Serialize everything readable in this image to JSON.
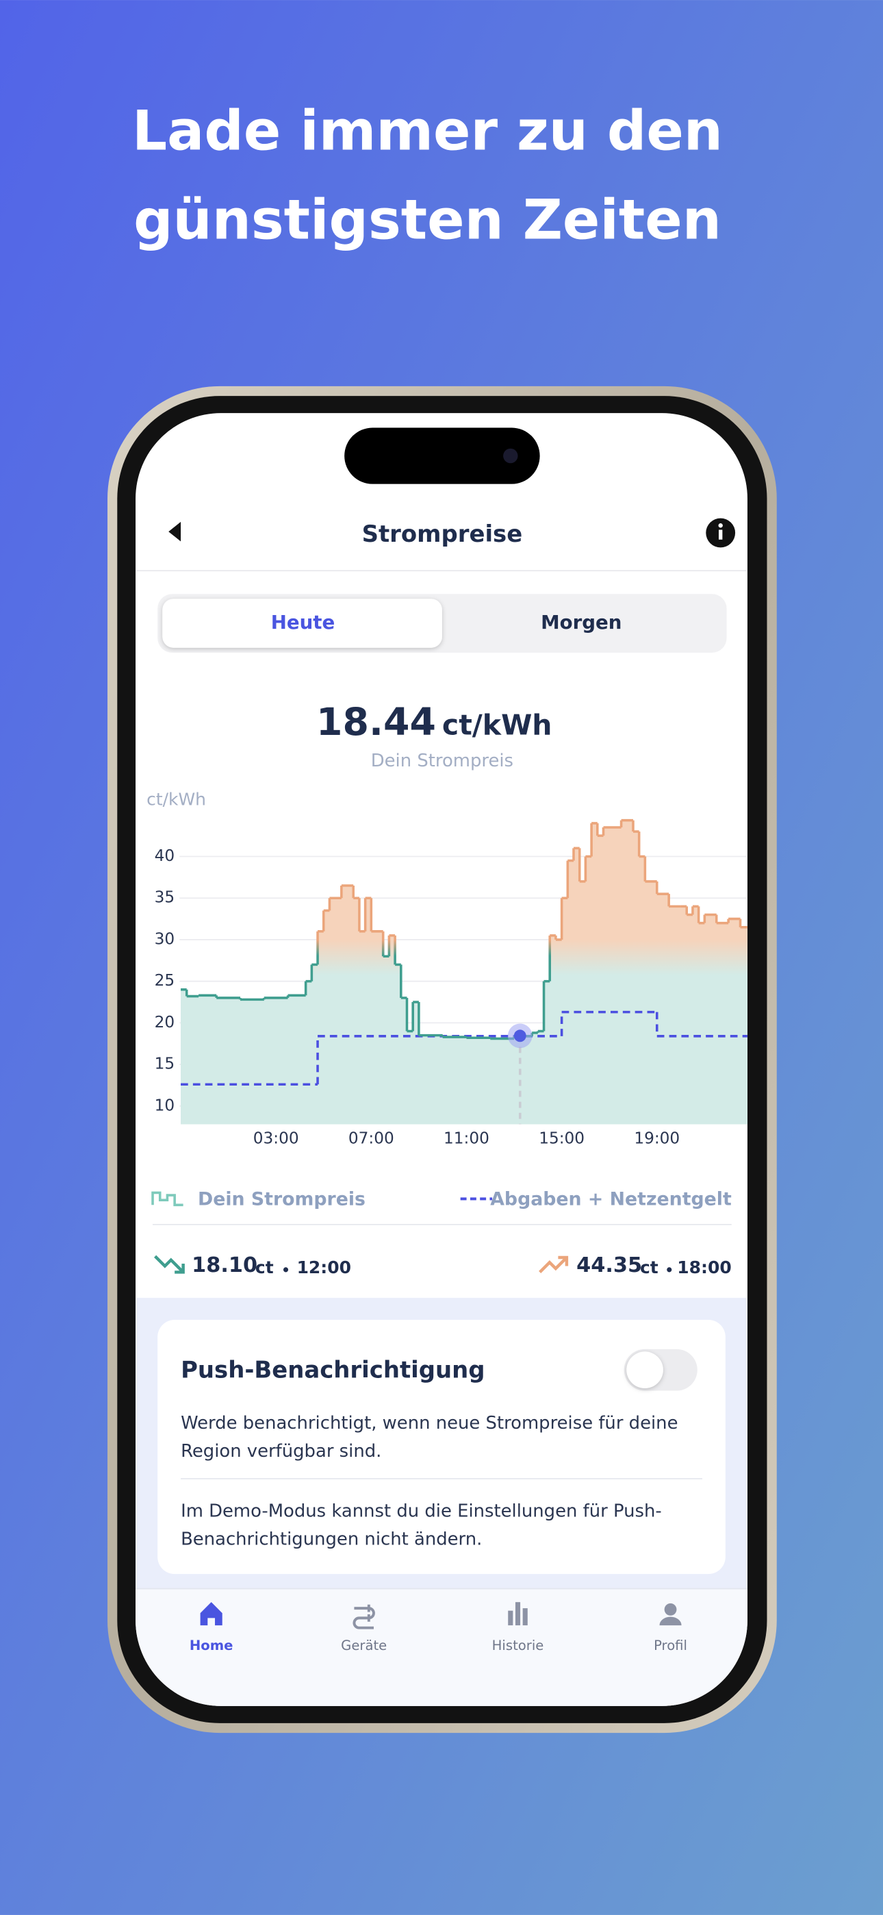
{
  "headline": [
    "Lade immer zu den",
    "günstigsten Zeiten"
  ],
  "screen": {
    "title": "Strompreise",
    "tabs": [
      "Heute",
      "Morgen"
    ],
    "price_unit": "ct/kWh",
    "price_caption": "Dein Strompreis"
  },
  "chart_data": {
    "type": "line",
    "y_label": "ct/kWh",
    "series": [
      {
        "name": "Dein Strompreis",
        "color": "#3f9e8f",
        "high_color": "#eba57b",
        "step": true,
        "x": [
          -1,
          -0.75,
          -0.25,
          0.5,
          1.5,
          2.5,
          3.5,
          4.25,
          4.5,
          4.75,
          5,
          5.25,
          5.75,
          6.25,
          6.5,
          6.75,
          7,
          7.5,
          7.75,
          8,
          8.25,
          8.5,
          8.75,
          9,
          10,
          11,
          12,
          13,
          13.75,
          14,
          14.25,
          14.5,
          14.75,
          15,
          15.25,
          15.5,
          15.75,
          16,
          16.25,
          16.5,
          16.75,
          17.5,
          18,
          18.25,
          18.5,
          19,
          19.5,
          20,
          20.25,
          20.5,
          20.75,
          21,
          21.5,
          22,
          22.5
        ],
        "values": [
          24,
          23.2,
          23.3,
          23,
          22.8,
          23,
          23.3,
          25,
          27,
          31,
          33.5,
          35,
          36.5,
          35,
          31,
          35,
          31,
          28,
          30.5,
          27,
          23,
          19,
          22.5,
          18.5,
          18.3,
          18.2,
          18.1,
          18.4,
          18.8,
          19,
          25,
          30.5,
          30,
          35,
          39.5,
          41,
          37,
          40,
          44,
          42.5,
          43.5,
          44.35,
          43,
          40,
          37,
          35.5,
          34,
          34,
          33,
          34,
          32,
          33,
          32,
          32.5,
          31.5
        ]
      },
      {
        "name": "Abgaben + Netzentgelt",
        "color": "#4b4fe0",
        "dashed": true,
        "step": true,
        "x": [
          -1,
          4.75,
          15,
          19
        ],
        "values": [
          12.6,
          18.4,
          21.3,
          18.4
        ]
      }
    ],
    "xlim": [
      -1.05,
      22.8
    ],
    "ylim": [
      7.8,
      46
    ],
    "xticks": [
      {
        "value": 3,
        "label": "03:00"
      },
      {
        "value": 7,
        "label": "07:00"
      },
      {
        "value": 11,
        "label": "11:00"
      },
      {
        "value": 15,
        "label": "15:00"
      },
      {
        "value": 19,
        "label": "19:00"
      }
    ],
    "yticks": [
      10,
      15,
      20,
      25,
      30,
      35,
      40
    ],
    "grid": true,
    "marker": {
      "x": 13.25,
      "y": 18.44
    }
  },
  "stats": {
    "min": {
      "value": "18.10",
      "unit": "ct",
      "time": "12:00"
    },
    "max": {
      "value": "44.35",
      "unit": "ct",
      "time": "18:00"
    }
  },
  "push": {
    "title": "Push-Benachrichtigung",
    "description": [
      "Werde benachrichtigt, wenn neue Strompreise für deine",
      "Region verfügbar sind."
    ],
    "note": [
      "Im Demo-Modus kannst du die Einstellungen für Push-",
      "Benachrichtigungen nicht ändern."
    ]
  },
  "tab_bar": [
    "Home",
    "Geräte",
    "Historie",
    "Profil"
  ]
}
